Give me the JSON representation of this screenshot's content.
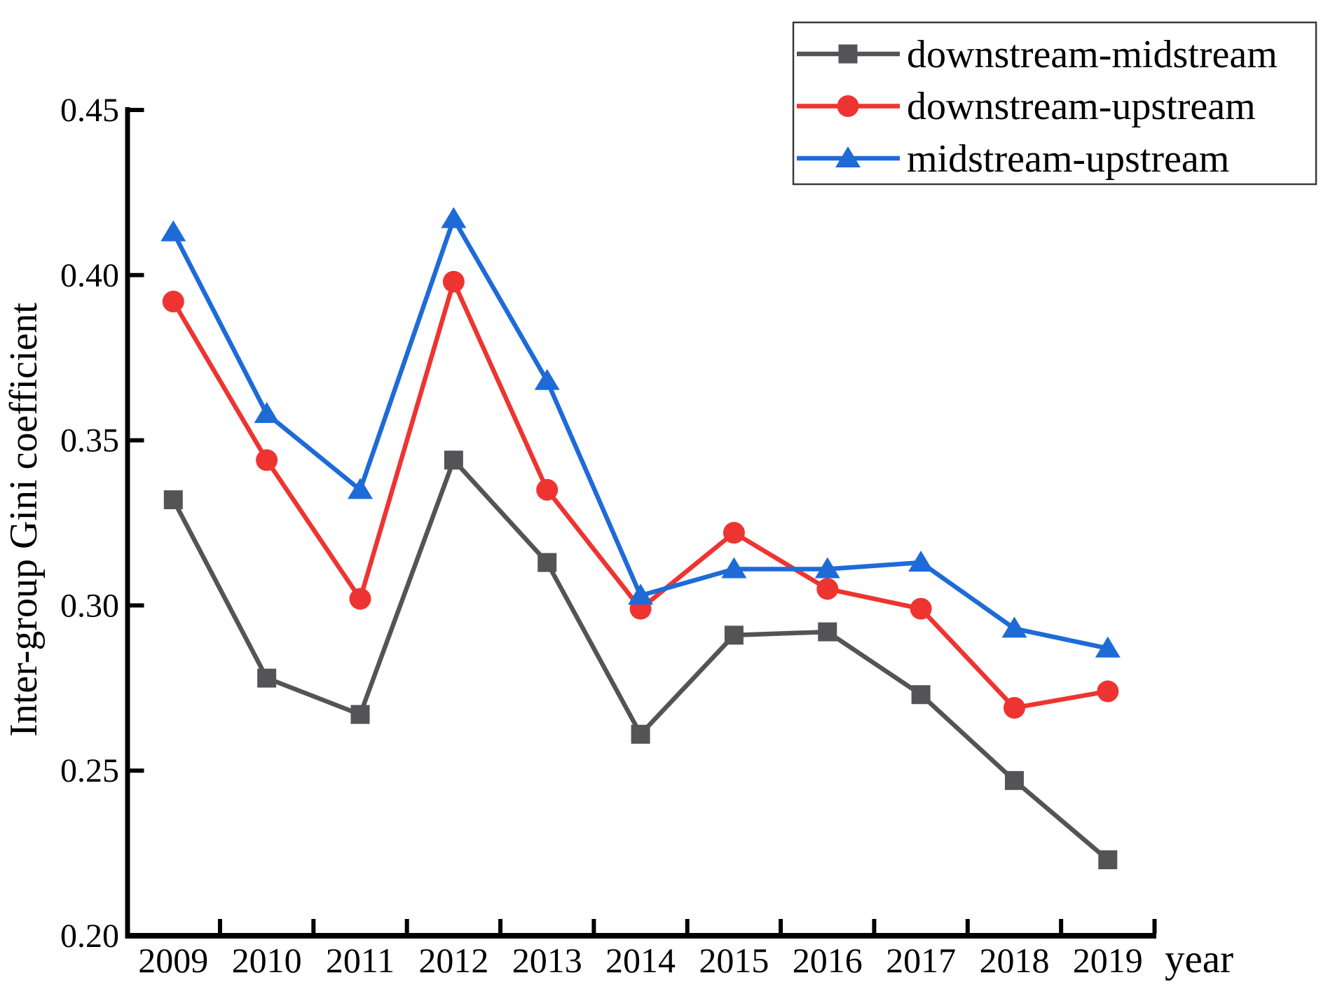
{
  "figure": {
    "background": "#ffffff",
    "axis_color": "#000000"
  },
  "chart_data": {
    "type": "line",
    "title": "",
    "xlabel": "year",
    "ylabel": "Inter-group Gini coefficient",
    "x": [
      2009,
      2010,
      2011,
      2012,
      2013,
      2014,
      2015,
      2016,
      2017,
      2018,
      2019
    ],
    "ylim": [
      0.2,
      0.45
    ],
    "yticks": [
      0.2,
      0.25,
      0.3,
      0.35,
      0.4,
      0.45
    ],
    "grid": false,
    "legend_position": "top-right",
    "legend_border_color": "#3a3a3a",
    "series": [
      {
        "name": "downstream-midstream",
        "color": "#545456",
        "marker": "square",
        "values": [
          0.332,
          0.278,
          0.267,
          0.344,
          0.313,
          0.261,
          0.291,
          0.292,
          0.273,
          0.247,
          0.223
        ]
      },
      {
        "name": "downstream-upstream",
        "color": "#ee3431",
        "marker": "circle",
        "values": [
          0.392,
          0.344,
          0.302,
          0.398,
          0.335,
          0.299,
          0.322,
          0.305,
          0.299,
          0.269,
          0.274
        ]
      },
      {
        "name": "midstream-upstream",
        "color": "#1e6bd8",
        "marker": "triangle",
        "values": [
          0.413,
          0.358,
          0.335,
          0.417,
          0.368,
          0.303,
          0.311,
          0.311,
          0.313,
          0.293,
          0.287
        ]
      }
    ]
  }
}
